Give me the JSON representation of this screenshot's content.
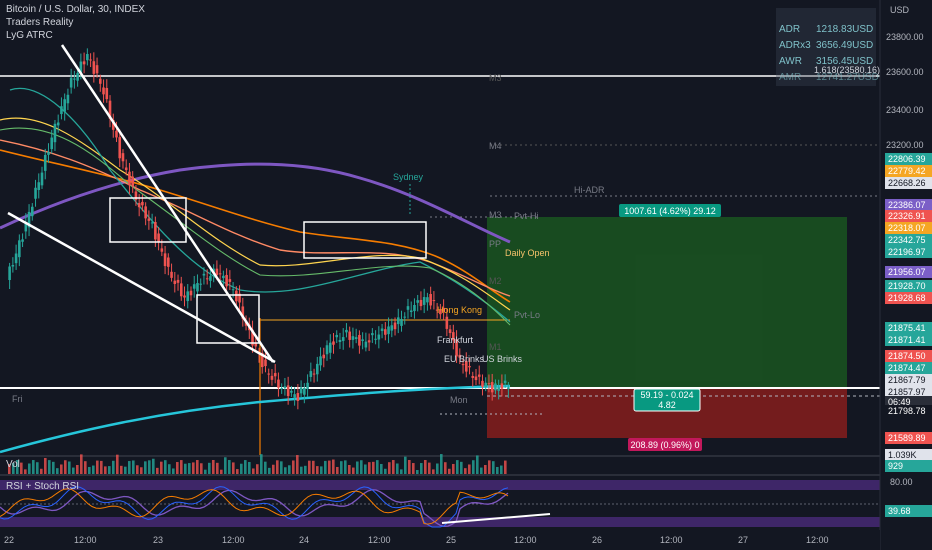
{
  "header": {
    "symbol_line": "Bitcoin / U.S. Dollar, 30, INDEX",
    "indicator_1": "Traders Reality",
    "indicator_2": "LyG ATRC"
  },
  "adr_panel": {
    "rows": [
      {
        "label": "ADR",
        "value": "1218.83USD"
      },
      {
        "label": "ADRx3",
        "value": "3656.49USD"
      },
      {
        "label": "AWR",
        "value": "3156.45USD"
      },
      {
        "label": "AMR",
        "value": "12741.27USD"
      }
    ],
    "fib_label": "1.618(23580.16)"
  },
  "axis": {
    "currency": "USD",
    "price_ticks": [
      "23800.00",
      "23600.00",
      "23400.00",
      "23200.00"
    ],
    "time_ticks": [
      "22",
      "12:00",
      "23",
      "12:00",
      "24",
      "12:00",
      "25",
      "12:00",
      "26",
      "12:00",
      "27",
      "12:00"
    ],
    "rsi_tick": "80.00"
  },
  "price_tags": [
    {
      "text": "22806.39",
      "bg": "#26a69a"
    },
    {
      "text": "22779.42",
      "bg": "#f5a623"
    },
    {
      "text": "22668.26",
      "bg": "#e0e3eb",
      "fg": "#131722"
    },
    {
      "text": "22386.07",
      "bg": "#7b5fc7"
    },
    {
      "text": "22326.91",
      "bg": "#ef5350"
    },
    {
      "text": "22318.07",
      "bg": "#f5a623"
    },
    {
      "text": "22342.75",
      "bg": "#26a69a"
    },
    {
      "text": "22196.97",
      "bg": "#26a69a"
    },
    {
      "text": "21956.07",
      "bg": "#7b5fc7"
    },
    {
      "text": "21928.70",
      "bg": "#26a69a"
    },
    {
      "text": "21928.68",
      "bg": "#ef5350"
    },
    {
      "text": "21875.41",
      "bg": "#26a69a"
    },
    {
      "text": "21871.41",
      "bg": "#26a69a"
    },
    {
      "text": "21874.50",
      "bg": "#ef5350"
    },
    {
      "text": "21874.47",
      "bg": "#26a69a"
    },
    {
      "text": "21867.79",
      "bg": "#e0e3eb",
      "fg": "#131722"
    },
    {
      "text": "21857.97",
      "bg": "#e0e3eb",
      "fg": "#131722"
    },
    {
      "text": "06:49",
      "bg": "#2a2e39"
    },
    {
      "text": "21798.78",
      "bg": "#131722"
    },
    {
      "text": "21589.89",
      "bg": "#ef5350"
    },
    {
      "text": "1.039K",
      "bg": "#e0e3eb",
      "fg": "#131722"
    },
    {
      "text": "929",
      "bg": "#26a69a"
    },
    {
      "text": "39.68",
      "bg": "#26a69a"
    }
  ],
  "chart_labels": {
    "sydney": "Sydney",
    "hi_adr": "Hi-ADR",
    "m4": "M4",
    "m3_top": "M3",
    "m3": "M3",
    "pvt_hi": "Pvt-Hi",
    "pp": "PP",
    "daily_open": "Daily Open",
    "m2": "M2",
    "pvt_lo": "Pvt-Lo",
    "hong_kong": "Hong Kong",
    "frankfurt": "Frankfurt",
    "m1": "M1",
    "eu_brinks": "EU Brinks",
    "us_brinks": "US Brinks",
    "fri": "Fri",
    "mon": "Mon",
    "target_box": "1007.61 (4.62%) 29.12",
    "entry_box_line1": "59.19 - 0.024",
    "entry_box_line2": "4.82",
    "stop_box": "208.89 (0.96%) 0"
  },
  "panes": {
    "volume_title": "Vol",
    "rsi_title": "RSI + Stoch RSI"
  },
  "chart_data": {
    "type": "line",
    "title": "Bitcoin / U.S. Dollar, 30, INDEX",
    "ylabel": "USD",
    "x_ticks": [
      "22",
      "12:00",
      "23",
      "12:00",
      "24",
      "12:00",
      "25",
      "12:00",
      "26",
      "12:00",
      "27",
      "12:00"
    ],
    "y_ticks": [
      23200,
      23400,
      23600,
      23800
    ],
    "ylim": [
      21450,
      23950
    ],
    "series": [
      {
        "name": "",
        "values": [
          22450,
          22700,
          23000,
          23300,
          23550,
          23700,
          23500,
          23150,
          22900,
          22750,
          22500,
          22350,
          22450,
          22500,
          22400,
          22150,
          21950,
          21850,
          21800,
          21950,
          22100,
          22150,
          22100,
          22150,
          22200,
          22300,
          22350,
          22250,
          22000,
          21900,
          21850,
          21870
        ]
      }
    ],
    "levels": {
      "hi_adr": 22668.26,
      "pvt_hi": 22326.91,
      "pp": 22196.97,
      "pvt_lo": 21928.68,
      "entry": 21867.79,
      "target": 22875.4,
      "stop": 21658.9,
      "upper_white_line": 23580.16
    },
    "grid": false,
    "legend": "none"
  }
}
